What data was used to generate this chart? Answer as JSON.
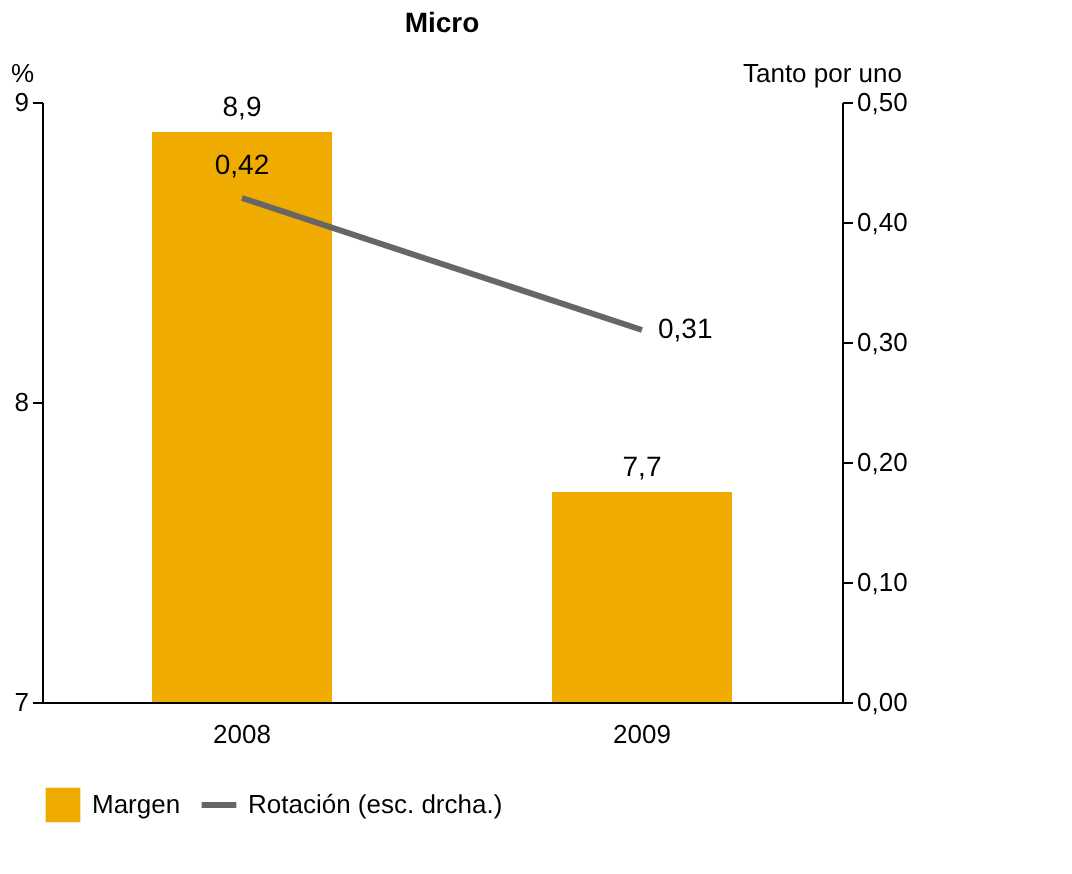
{
  "chart_data": {
    "type": "bar",
    "title": "Micro",
    "ylabel": "%",
    "y2label": "Tanto por uno",
    "categories": [
      "2008",
      "2009"
    ],
    "series": [
      {
        "name": "Margen",
        "color": "#f0ab00",
        "values": [
          8.9,
          7.7
        ],
        "value_labels": [
          "8,9",
          "7,7"
        ]
      },
      {
        "name": "Rotación (esc. drcha.)",
        "type": "line",
        "axis": "y2",
        "color": "#666666",
        "values": [
          0.42,
          0.31
        ],
        "value_labels": [
          "0,42",
          "0,31"
        ]
      }
    ],
    "ylim": [
      7,
      9
    ],
    "yticks": [
      7,
      8,
      9
    ],
    "y2lim": [
      0,
      0.5
    ],
    "y2ticks": [
      {
        "value": 0,
        "label": "0,00"
      },
      {
        "value": 0.1,
        "label": "0,10"
      },
      {
        "value": 0.2,
        "label": "0,20"
      },
      {
        "value": 0.3,
        "label": "0,30"
      },
      {
        "value": 0.4,
        "label": "0,40"
      },
      {
        "value": 0.5,
        "label": "0,50"
      }
    ],
    "grid": false,
    "legend": "bottom"
  }
}
